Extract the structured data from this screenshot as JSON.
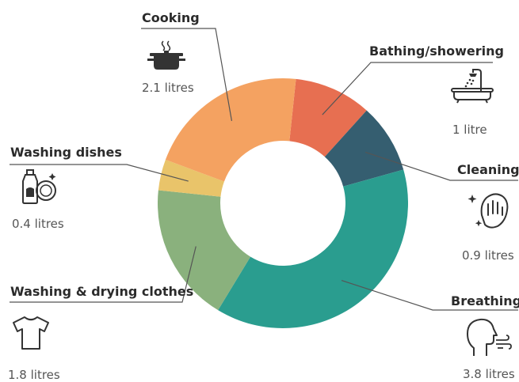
{
  "chart_data": {
    "type": "pie",
    "donut": true,
    "title": "",
    "unit": "litres",
    "segments": [
      {
        "label": "Bathing/showering",
        "value": 1.0,
        "value_label": "1 litre",
        "color": "#e76f51",
        "icon": "bathtub-shower-icon"
      },
      {
        "label": "Cleaning",
        "value": 0.9,
        "value_label": "0.9 litres",
        "color": "#355e70",
        "icon": "cleaning-hand-sparkle-icon"
      },
      {
        "label": "Breathing",
        "value": 3.8,
        "value_label": "3.8 litres",
        "color": "#2a9d8f",
        "icon": "breathing-head-icon"
      },
      {
        "label": "Washing & drying clothes",
        "value": 1.8,
        "value_label": "1.8 litres",
        "color": "#8ab17d",
        "icon": "tshirt-icon"
      },
      {
        "label": "Washing dishes",
        "value": 0.4,
        "value_label": "0.4 litres",
        "color": "#e9c46a",
        "icon": "dish-soap-icon"
      },
      {
        "label": "Cooking",
        "value": 2.1,
        "value_label": "2.1 litres",
        "color": "#f4a261",
        "icon": "cooking-pot-icon"
      }
    ]
  }
}
